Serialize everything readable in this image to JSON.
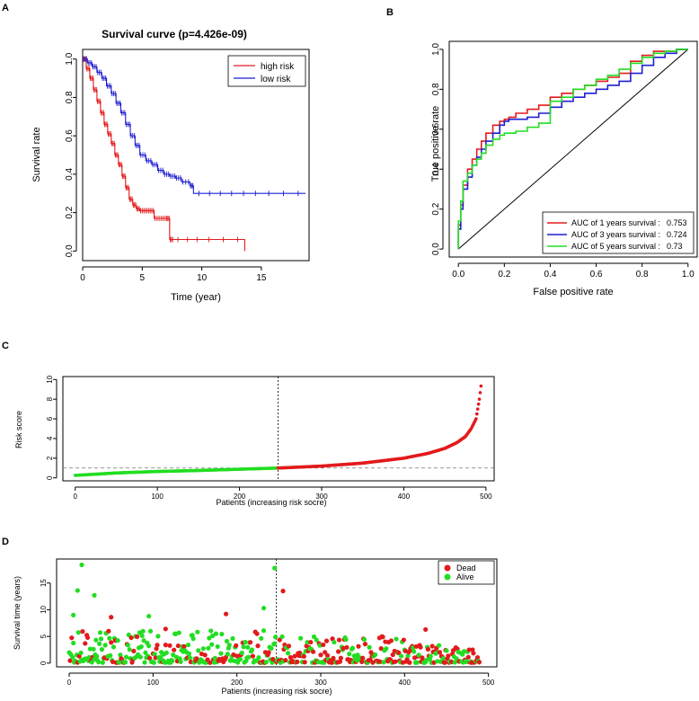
{
  "chart_data": [
    {
      "panel": "A",
      "type": "line",
      "title": "Survival curve (p=4.426e-09)",
      "xlabel": "Time (year)",
      "ylabel": "Survival rate",
      "xlim": [
        0,
        19
      ],
      "ylim": [
        -0.05,
        1.05
      ],
      "xticks": [
        "0",
        "5",
        "10",
        "15"
      ],
      "yticks": [
        "0.0",
        "0.2",
        "0.4",
        "0.6",
        "0.8",
        "1.0"
      ],
      "legend": [
        "high risk",
        "low risk"
      ],
      "series": [
        {
          "name": "high risk",
          "color": "#e31a1c",
          "x": [
            0,
            0.3,
            0.6,
            0.9,
            1.2,
            1.5,
            1.8,
            2.1,
            2.4,
            2.7,
            3.0,
            3.3,
            3.6,
            3.9,
            4.2,
            4.5,
            4.8,
            5.2,
            5.6,
            6.0,
            6.5,
            7.0,
            7.3,
            7.6,
            10.0,
            13.6
          ],
          "y": [
            1.0,
            0.95,
            0.9,
            0.84,
            0.78,
            0.72,
            0.66,
            0.61,
            0.56,
            0.5,
            0.45,
            0.39,
            0.33,
            0.27,
            0.24,
            0.22,
            0.21,
            0.21,
            0.21,
            0.17,
            0.17,
            0.17,
            0.06,
            0.06,
            0.06,
            0.0
          ]
        },
        {
          "name": "low risk",
          "color": "#1f1fd1",
          "x": [
            0,
            0.4,
            0.8,
            1.2,
            1.6,
            2.0,
            2.4,
            2.8,
            3.2,
            3.6,
            4.0,
            4.4,
            4.8,
            5.3,
            5.8,
            6.3,
            6.8,
            7.3,
            7.8,
            8.3,
            9.0,
            9.3,
            12.0,
            15.0,
            18.7
          ],
          "y": [
            1.0,
            0.98,
            0.96,
            0.93,
            0.9,
            0.86,
            0.82,
            0.77,
            0.72,
            0.66,
            0.6,
            0.55,
            0.5,
            0.47,
            0.45,
            0.42,
            0.4,
            0.39,
            0.38,
            0.36,
            0.34,
            0.3,
            0.3,
            0.3,
            0.3
          ]
        }
      ]
    },
    {
      "panel": "B",
      "type": "line",
      "xlabel": "False positive rate",
      "ylabel": "True positive rate",
      "xlim": [
        -0.04,
        1.04
      ],
      "ylim": [
        -0.04,
        1.04
      ],
      "xticks": [
        "0.0",
        "0.2",
        "0.4",
        "0.6",
        "0.8",
        "1.0"
      ],
      "yticks": [
        "0.0",
        "0.2",
        "0.4",
        "0.6",
        "0.8",
        "1.0"
      ],
      "legend": [
        {
          "label": "AUC of 1 years survival :",
          "value": "0.753",
          "color": "#e31a1c"
        },
        {
          "label": "AUC of 3 years survival :",
          "value": "0.724",
          "color": "#1f1fd1"
        },
        {
          "label": "AUC of 5 years survival :",
          "value": "0.73",
          "color": "#22dd22"
        }
      ],
      "series": [
        {
          "name": "AUC of 1 years survival",
          "color": "#e31a1c",
          "x": [
            0,
            0.01,
            0.02,
            0.04,
            0.06,
            0.08,
            0.1,
            0.12,
            0.15,
            0.18,
            0.2,
            0.22,
            0.25,
            0.3,
            0.35,
            0.4,
            0.45,
            0.5,
            0.55,
            0.6,
            0.65,
            0.7,
            0.75,
            0.8,
            0.85,
            0.9,
            0.95,
            1.0
          ],
          "y": [
            0,
            0.12,
            0.22,
            0.32,
            0.4,
            0.45,
            0.5,
            0.54,
            0.58,
            0.62,
            0.64,
            0.65,
            0.66,
            0.68,
            0.7,
            0.72,
            0.76,
            0.78,
            0.8,
            0.82,
            0.84,
            0.86,
            0.88,
            0.94,
            0.97,
            0.99,
            0.99,
            1.0
          ]
        },
        {
          "name": "AUC of 3 years survival",
          "color": "#1f1fd1",
          "x": [
            0,
            0.01,
            0.02,
            0.04,
            0.06,
            0.08,
            0.1,
            0.12,
            0.15,
            0.18,
            0.2,
            0.22,
            0.25,
            0.3,
            0.35,
            0.4,
            0.45,
            0.5,
            0.55,
            0.6,
            0.65,
            0.7,
            0.75,
            0.8,
            0.85,
            0.9,
            0.95,
            1.0
          ],
          "y": [
            0,
            0.1,
            0.2,
            0.3,
            0.36,
            0.42,
            0.46,
            0.5,
            0.54,
            0.58,
            0.62,
            0.64,
            0.65,
            0.65,
            0.66,
            0.68,
            0.71,
            0.74,
            0.76,
            0.78,
            0.8,
            0.82,
            0.84,
            0.88,
            0.92,
            0.96,
            0.98,
            1.0
          ]
        },
        {
          "name": "AUC of 5 years survival",
          "color": "#22dd22",
          "x": [
            0,
            0.01,
            0.02,
            0.04,
            0.06,
            0.08,
            0.1,
            0.12,
            0.15,
            0.18,
            0.2,
            0.22,
            0.25,
            0.3,
            0.35,
            0.4,
            0.45,
            0.5,
            0.55,
            0.6,
            0.65,
            0.7,
            0.75,
            0.8,
            0.85,
            0.9,
            0.95,
            1.0
          ],
          "y": [
            0,
            0.14,
            0.24,
            0.34,
            0.38,
            0.42,
            0.45,
            0.48,
            0.52,
            0.55,
            0.57,
            0.58,
            0.58,
            0.59,
            0.61,
            0.63,
            0.74,
            0.76,
            0.8,
            0.82,
            0.85,
            0.87,
            0.9,
            0.93,
            0.96,
            0.98,
            0.99,
            1.0
          ]
        }
      ]
    },
    {
      "panel": "C",
      "type": "scatter",
      "xlabel": "Patients (increasing risk socre)",
      "ylabel": "Risk score",
      "xlim": [
        -15,
        510
      ],
      "ylim": [
        -0.3,
        10.3
      ],
      "xticks": [
        "0",
        "100",
        "200",
        "300",
        "400",
        "500"
      ],
      "yticks": [
        "0",
        "2",
        "4",
        "6",
        "8",
        "10"
      ],
      "cutoff_patient": 247,
      "cutoff_score": 1.0,
      "n_patients": 495,
      "low_risk_color": "#22dd22",
      "high_risk_color": "#e31a1c",
      "score_anchors": {
        "patient": [
          0,
          50,
          100,
          150,
          200,
          247,
          300,
          350,
          400,
          430,
          450,
          465,
          475,
          482,
          488,
          492,
          495
        ],
        "score": [
          0.25,
          0.5,
          0.65,
          0.75,
          0.88,
          1.0,
          1.2,
          1.5,
          2.0,
          2.5,
          3.0,
          3.6,
          4.2,
          5.0,
          6.0,
          8.0,
          10.0
        ]
      }
    },
    {
      "panel": "D",
      "type": "scatter",
      "xlabel": "Patients (increasing risk socre)",
      "ylabel": "Survival time (years)",
      "xlim": [
        -15,
        510
      ],
      "ylim": [
        -0.7,
        19.5
      ],
      "xticks": [
        "0",
        "100",
        "200",
        "300",
        "400",
        "500"
      ],
      "yticks": [
        "0",
        "5",
        "10",
        "15"
      ],
      "cutoff_patient": 247,
      "legend": [
        {
          "label": "Dead",
          "color": "#e31a1c"
        },
        {
          "label": "Alive",
          "color": "#22dd22"
        }
      ],
      "highlighted_points": [
        {
          "patient": 15,
          "years": 18.4,
          "status": "Alive"
        },
        {
          "patient": 245,
          "years": 17.8,
          "status": "Alive"
        },
        {
          "patient": 10,
          "years": 13.6,
          "status": "Alive"
        },
        {
          "patient": 30,
          "years": 12.7,
          "status": "Alive"
        },
        {
          "patient": 255,
          "years": 13.5,
          "status": "Dead"
        },
        {
          "patient": 232,
          "years": 10.3,
          "status": "Alive"
        },
        {
          "patient": 5,
          "years": 9.0,
          "status": "Alive"
        },
        {
          "patient": 187,
          "years": 9.2,
          "status": "Dead"
        },
        {
          "patient": 50,
          "years": 8.6,
          "status": "Dead"
        },
        {
          "patient": 95,
          "years": 8.8,
          "status": "Alive"
        },
        {
          "patient": 115,
          "years": 6.4,
          "status": "Dead"
        },
        {
          "patient": 425,
          "years": 6.3,
          "status": "Dead"
        }
      ]
    }
  ],
  "panel_labels": [
    "A",
    "B",
    "C",
    "D"
  ]
}
